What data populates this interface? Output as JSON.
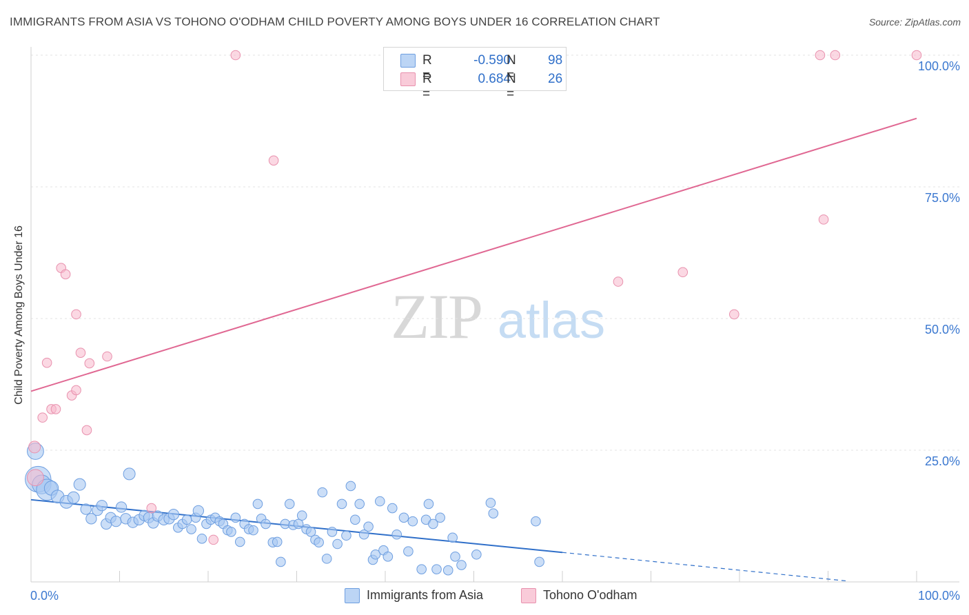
{
  "title": "IMMIGRANTS FROM ASIA VS TOHONO O'ODHAM CHILD POVERTY AMONG BOYS UNDER 16 CORRELATION CHART",
  "source": "Source: ZipAtlas.com",
  "watermark": {
    "zip": "ZIP",
    "atlas": "atlas"
  },
  "legend": {
    "series1": {
      "r_label": "R =",
      "r_value": "-0.590",
      "n_label": "N =",
      "n_value": "98"
    },
    "series2": {
      "r_label": "R =",
      "r_value": "0.684",
      "n_label": "N =",
      "n_value": "26"
    }
  },
  "colors": {
    "blue_fill": "#a9c8f2",
    "blue_stroke": "#6d9ee0",
    "blue_line": "#2f6fc9",
    "pink_fill": "#f7b8cc",
    "pink_stroke": "#e890ad",
    "pink_line": "#e06792",
    "axis_text": "#3b78d0"
  },
  "chart_data": {
    "type": "scatter",
    "title": "IMMIGRANTS FROM ASIA VS TOHONO O'ODHAM CHILD POVERTY AMONG BOYS UNDER 16 CORRELATION CHART",
    "xlabel": "",
    "ylabel": "Child Poverty Among Boys Under 16",
    "xlim": [
      0,
      100
    ],
    "ylim": [
      0,
      100
    ],
    "x_tick_labels": [
      "0.0%",
      "100.0%"
    ],
    "y_ticks": [
      25,
      50,
      75,
      100
    ],
    "y_tick_labels": [
      "25.0%",
      "50.0%",
      "75.0%",
      "100.0%"
    ],
    "grid": true,
    "series": [
      {
        "name": "Immigrants from Asia",
        "color": "#a9c8f2",
        "trend": {
          "x": [
            0,
            60
          ],
          "y": [
            15.6,
            5.6
          ],
          "dashed_to": [
            92,
            0.2
          ]
        },
        "points": [
          [
            0.5,
            24.8,
            1.4
          ],
          [
            0.8,
            19.5,
            2.2
          ],
          [
            1.2,
            18.5,
            1.6
          ],
          [
            1.8,
            17.5,
            1.8
          ],
          [
            2.3,
            17.8,
            1.2
          ],
          [
            3.0,
            16.2,
            1.1
          ],
          [
            4.0,
            15.2,
            1.1
          ],
          [
            4.8,
            16.0,
            1.0
          ],
          [
            5.5,
            18.5,
            1.0
          ],
          [
            6.2,
            13.8,
            0.9
          ],
          [
            6.8,
            12.0,
            0.9
          ],
          [
            7.5,
            13.6,
            0.9
          ],
          [
            8.0,
            14.5,
            0.9
          ],
          [
            8.5,
            11.0,
            0.9
          ],
          [
            9.0,
            12.2,
            0.9
          ],
          [
            9.6,
            11.5,
            0.9
          ],
          [
            10.2,
            14.2,
            0.9
          ],
          [
            10.7,
            12.0,
            0.9
          ],
          [
            11.1,
            20.5,
            1.0
          ],
          [
            11.5,
            11.3,
            0.9
          ],
          [
            12.2,
            11.8,
            0.9
          ],
          [
            12.8,
            12.6,
            0.9
          ],
          [
            13.3,
            12.2,
            0.9
          ],
          [
            13.8,
            11.2,
            0.9
          ],
          [
            14.3,
            12.5,
            0.9
          ],
          [
            15.0,
            11.8,
            0.9
          ],
          [
            15.6,
            12.0,
            0.9
          ],
          [
            16.1,
            12.8,
            0.9
          ],
          [
            16.6,
            10.3,
            0.8
          ],
          [
            17.1,
            11.0,
            0.8
          ],
          [
            17.6,
            11.8,
            0.8
          ],
          [
            18.1,
            10.0,
            0.8
          ],
          [
            18.6,
            12.2,
            0.8
          ],
          [
            18.9,
            13.5,
            0.9
          ],
          [
            19.3,
            8.2,
            0.8
          ],
          [
            19.8,
            11.0,
            0.8
          ],
          [
            20.3,
            11.8,
            0.8
          ],
          [
            20.8,
            12.2,
            0.8
          ],
          [
            21.3,
            11.5,
            0.8
          ],
          [
            21.7,
            11.0,
            0.8
          ],
          [
            22.2,
            9.8,
            0.8
          ],
          [
            22.6,
            9.5,
            0.8
          ],
          [
            23.1,
            12.2,
            0.8
          ],
          [
            23.6,
            7.6,
            0.8
          ],
          [
            24.1,
            11.0,
            0.8
          ],
          [
            24.6,
            10.0,
            0.8
          ],
          [
            25.1,
            9.8,
            0.8
          ],
          [
            25.6,
            14.8,
            0.8
          ],
          [
            26.0,
            12.0,
            0.8
          ],
          [
            26.5,
            11.0,
            0.8
          ],
          [
            27.3,
            7.5,
            0.8
          ],
          [
            27.8,
            7.6,
            0.8
          ],
          [
            28.2,
            3.8,
            0.8
          ],
          [
            28.7,
            11.0,
            0.8
          ],
          [
            29.2,
            14.8,
            0.8
          ],
          [
            29.6,
            10.8,
            0.8
          ],
          [
            30.2,
            11.0,
            0.8
          ],
          [
            30.6,
            12.6,
            0.8
          ],
          [
            31.1,
            10.0,
            0.8
          ],
          [
            31.6,
            9.5,
            0.8
          ],
          [
            32.1,
            8.0,
            0.8
          ],
          [
            32.5,
            7.5,
            0.8
          ],
          [
            32.9,
            17.0,
            0.8
          ],
          [
            33.4,
            4.4,
            0.8
          ],
          [
            34.0,
            9.5,
            0.8
          ],
          [
            34.6,
            7.2,
            0.8
          ],
          [
            35.1,
            14.8,
            0.8
          ],
          [
            35.6,
            8.8,
            0.8
          ],
          [
            36.1,
            18.2,
            0.8
          ],
          [
            36.6,
            11.8,
            0.8
          ],
          [
            37.1,
            14.8,
            0.8
          ],
          [
            37.6,
            9.0,
            0.8
          ],
          [
            38.1,
            10.5,
            0.8
          ],
          [
            38.6,
            4.2,
            0.8
          ],
          [
            38.9,
            5.2,
            0.8
          ],
          [
            39.4,
            15.3,
            0.8
          ],
          [
            39.8,
            6.0,
            0.8
          ],
          [
            40.3,
            4.8,
            0.8
          ],
          [
            40.8,
            14.0,
            0.8
          ],
          [
            41.3,
            9.0,
            0.8
          ],
          [
            42.1,
            12.2,
            0.8
          ],
          [
            42.6,
            5.8,
            0.8
          ],
          [
            43.1,
            11.5,
            0.8
          ],
          [
            44.1,
            2.4,
            0.8
          ],
          [
            44.6,
            11.8,
            0.8
          ],
          [
            44.9,
            14.8,
            0.8
          ],
          [
            45.4,
            11.0,
            0.8
          ],
          [
            45.8,
            2.4,
            0.8
          ],
          [
            46.2,
            12.2,
            0.8
          ],
          [
            47.1,
            2.2,
            0.8
          ],
          [
            47.6,
            8.4,
            0.8
          ],
          [
            47.9,
            4.8,
            0.8
          ],
          [
            48.6,
            3.2,
            0.8
          ],
          [
            50.3,
            5.2,
            0.8
          ],
          [
            51.9,
            15.0,
            0.8
          ],
          [
            52.2,
            13.0,
            0.8
          ],
          [
            57.4,
            3.8,
            0.8
          ],
          [
            57.0,
            11.5,
            0.8
          ]
        ]
      },
      {
        "name": "Tohono O'odham",
        "color": "#f7b8cc",
        "trend": {
          "x": [
            0,
            100
          ],
          "y": [
            36.2,
            88.0
          ]
        },
        "points": [
          [
            0.4,
            25.6,
            1.0
          ],
          [
            0.5,
            19.8,
            1.4
          ],
          [
            1.3,
            31.2,
            0.8
          ],
          [
            1.8,
            41.6,
            0.8
          ],
          [
            2.3,
            32.8,
            0.8
          ],
          [
            2.8,
            32.8,
            0.8
          ],
          [
            3.4,
            59.6,
            0.8
          ],
          [
            3.9,
            58.4,
            0.8
          ],
          [
            4.6,
            35.4,
            0.8
          ],
          [
            5.1,
            50.8,
            0.8
          ],
          [
            5.1,
            36.4,
            0.8
          ],
          [
            5.6,
            43.5,
            0.8
          ],
          [
            6.3,
            28.8,
            0.8
          ],
          [
            6.6,
            41.5,
            0.8
          ],
          [
            8.6,
            42.8,
            0.8
          ],
          [
            13.6,
            14.0,
            0.8
          ],
          [
            20.6,
            8.0,
            0.8
          ],
          [
            23.1,
            100,
            0.8
          ],
          [
            27.4,
            80.0,
            0.8
          ],
          [
            66.3,
            57.0,
            0.8
          ],
          [
            73.6,
            58.8,
            0.8
          ],
          [
            79.4,
            50.8,
            0.8
          ],
          [
            89.1,
            100,
            0.8
          ],
          [
            89.5,
            68.8,
            0.8
          ],
          [
            90.8,
            100,
            0.8
          ],
          [
            100,
            100,
            0.8
          ]
        ]
      }
    ]
  }
}
